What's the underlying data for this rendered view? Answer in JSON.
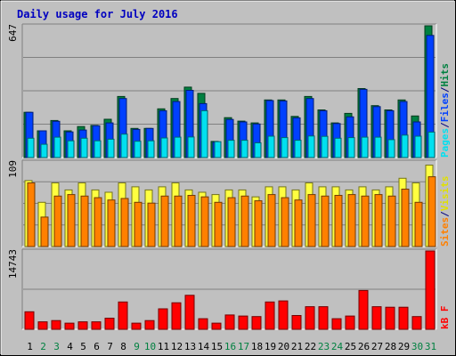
{
  "chart_data": {
    "type": "bar",
    "title": "Daily usage for July 2016",
    "categories": [
      "1",
      "2",
      "3",
      "4",
      "5",
      "6",
      "7",
      "8",
      "9",
      "10",
      "11",
      "12",
      "13",
      "14",
      "15",
      "16",
      "17",
      "18",
      "19",
      "20",
      "21",
      "22",
      "23",
      "24",
      "25",
      "26",
      "27",
      "28",
      "29",
      "30",
      "31"
    ],
    "weekend_days": [
      "2",
      "3",
      "9",
      "10",
      "16",
      "17",
      "23",
      "24",
      "30",
      "31"
    ],
    "panels": [
      {
        "name": "hits-files-pages",
        "max_label": "647",
        "ymax": 647,
        "legend": [
          {
            "label": "Pages",
            "color": "#00e0f0"
          },
          {
            "label": "/",
            "color": "#000080"
          },
          {
            "label": "Files",
            "color": "#0040ff"
          },
          {
            "label": "/",
            "color": "#000080"
          },
          {
            "label": "Hits",
            "color": "#008040"
          }
        ],
        "series": [
          {
            "name": "Hits",
            "color": "#008040",
            "values": [
              222,
              131,
              182,
              131,
              152,
              158,
              188,
              300,
              143,
              143,
              239,
              290,
              346,
              315,
              79,
              196,
              179,
              170,
              283,
              283,
              202,
              300,
              234,
              170,
              217,
              339,
              255,
              234,
              283,
              204,
              647
            ]
          },
          {
            "name": "Files",
            "color": "#0040ff",
            "values": [
              222,
              131,
              178,
              126,
              135,
              156,
              170,
              290,
              138,
              143,
              230,
              275,
              330,
              265,
              75,
              187,
              175,
              165,
              280,
              278,
              195,
              290,
              230,
              167,
              200,
              335,
              250,
              230,
              275,
              175,
              600
            ]
          },
          {
            "name": "Pages",
            "color": "#00e0f0",
            "values": [
              95,
              65,
              100,
              82,
              95,
              82,
              90,
              115,
              80,
              82,
              96,
              100,
              101,
              230,
              78,
              85,
              85,
              72,
              105,
              98,
              85,
              106,
              104,
              95,
              98,
              100,
              100,
              88,
              110,
              105,
              125
            ]
          }
        ]
      },
      {
        "name": "visits-sites",
        "max_label": "109",
        "ymax": 109,
        "legend": [
          {
            "label": "Sites",
            "color": "#ff8000"
          },
          {
            "label": "/",
            "color": "#000080"
          },
          {
            "label": "Visits",
            "color": "#e0e000"
          }
        ],
        "series": [
          {
            "name": "Visits",
            "color": "#ffff40",
            "values": [
              85,
              57,
              82,
              73,
              82,
              73,
              70,
              82,
              77,
              73,
              77,
              82,
              73,
              70,
              67,
              73,
              73,
              64,
              77,
              77,
              73,
              82,
              77,
              77,
              73,
              77,
              73,
              77,
              88,
              82,
              105
            ]
          },
          {
            "name": "Sites",
            "color": "#ff8000",
            "values": [
              82,
              38,
              65,
              67,
              65,
              63,
              60,
              62,
              57,
              56,
              65,
              65,
              66,
              64,
              57,
              63,
              65,
              59,
              67,
              63,
              60,
              67,
              65,
              66,
              67,
              65,
              67,
              65,
              74,
              57,
              90
            ]
          }
        ]
      },
      {
        "name": "kbytes",
        "max_label": "14743",
        "ymax": 14743,
        "legend": [
          {
            "label": "kB F",
            "color": "#ff0000"
          }
        ],
        "series": [
          {
            "name": "kB F",
            "color": "#ff0000",
            "values": [
              3300,
              1400,
              1650,
              1150,
              1400,
              1400,
              2100,
              5150,
              1150,
              1650,
              3850,
              5000,
              6400,
              2000,
              1150,
              2700,
              2500,
              2400,
              5150,
              5350,
              2600,
              4250,
              4250,
              2000,
              2500,
              7300,
              4250,
              4150,
              4150,
              2400,
              14743
            ]
          }
        ]
      }
    ],
    "colors": {
      "frame_bg": "#c0c0c0",
      "plot_bg": "#c0c0c0",
      "title": "#0000c0",
      "weekday_label": "#000000",
      "weekend_label": "#008040",
      "grid": "#808080"
    }
  }
}
